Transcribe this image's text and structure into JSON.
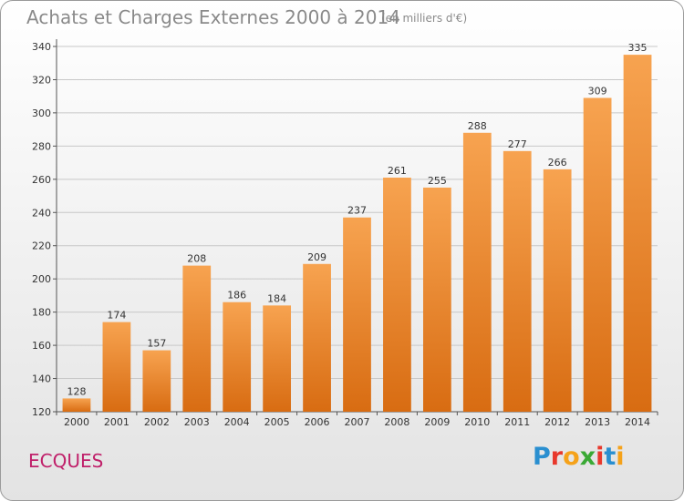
{
  "header": {
    "title": "Achats et Charges Externes 2000 à 2014",
    "subtitle": "(en milliers d'€)"
  },
  "footer": {
    "commune": "ECQUES",
    "logo_text": "Proxiti"
  },
  "colors": {
    "bar_light": "#f7a350",
    "bar_dark": "#d86c12",
    "commune": "#c0206a"
  },
  "chart_data": {
    "type": "bar",
    "title": "Achats et Charges Externes 2000 à 2014",
    "subtitle": "(en milliers d'€)",
    "categories": [
      "2000",
      "2001",
      "2002",
      "2003",
      "2004",
      "2005",
      "2006",
      "2007",
      "2008",
      "2009",
      "2010",
      "2011",
      "2012",
      "2013",
      "2014"
    ],
    "values": [
      128,
      174,
      157,
      208,
      186,
      184,
      209,
      237,
      261,
      255,
      288,
      277,
      266,
      309,
      335
    ],
    "ylim": [
      120,
      340
    ],
    "yticks": [
      120,
      140,
      160,
      180,
      200,
      220,
      240,
      260,
      280,
      300,
      320,
      340
    ],
    "grid": true,
    "legend": "none"
  }
}
